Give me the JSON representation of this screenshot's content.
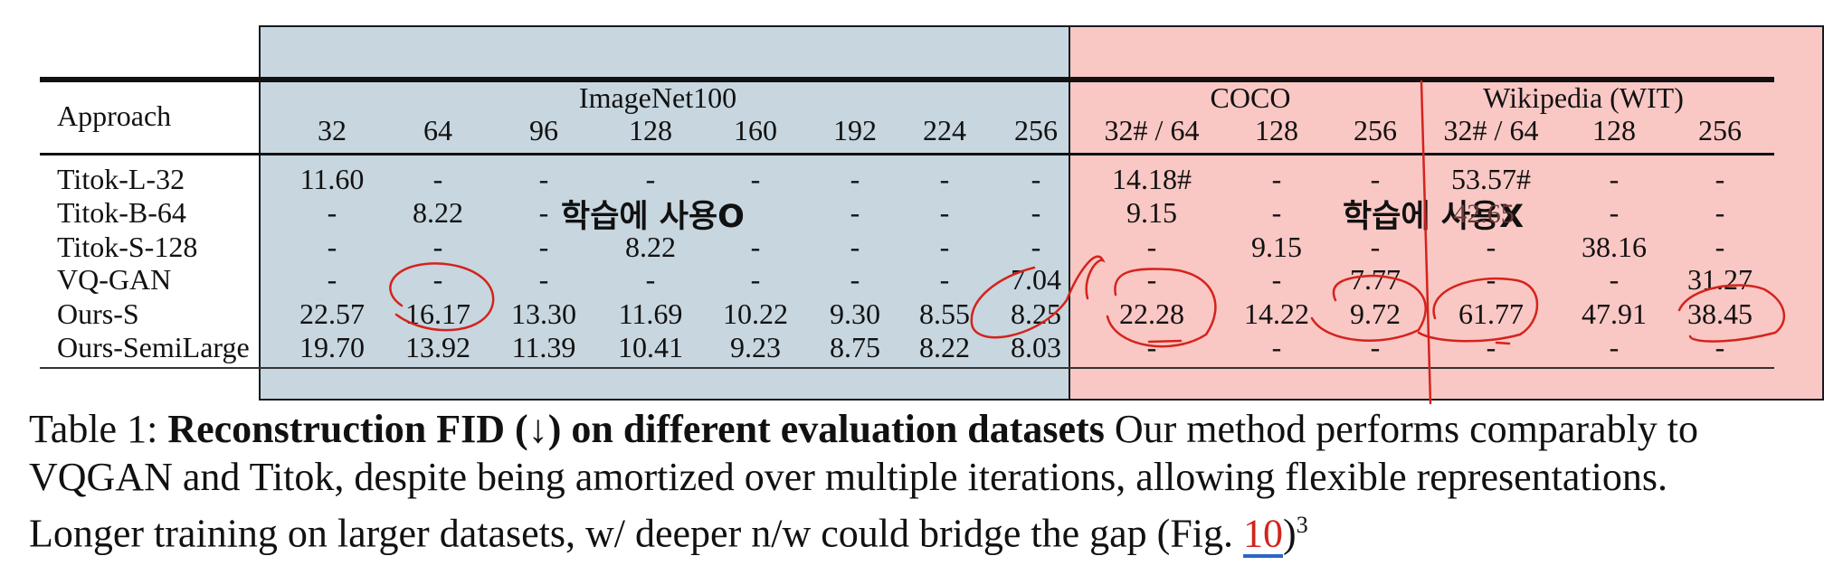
{
  "table": {
    "approach_header": "Approach",
    "groups": [
      {
        "label": "ImageNet100",
        "center": 0
      },
      {
        "label": "COCO",
        "center": 1
      },
      {
        "label": "Wikipedia (WIT)",
        "center": 2
      }
    ],
    "columns": [
      "32",
      "64",
      "96",
      "128",
      "160",
      "192",
      "224",
      "256",
      "32# / 64",
      "128",
      "256",
      "32# / 64",
      "128",
      "256"
    ],
    "rows": [
      {
        "name": "Titok-L-32",
        "values": [
          "11.60",
          "-",
          "-",
          "-",
          "-",
          "-",
          "-",
          "-",
          "14.18#",
          "-",
          "-",
          "53.57#",
          "-",
          "-"
        ]
      },
      {
        "name": "Titok-B-64",
        "values": [
          "-",
          "8.22",
          "-",
          "",
          "",
          "-",
          "-",
          "-",
          "9.15",
          "-",
          "",
          "",
          "-",
          "-"
        ]
      },
      {
        "name": "Titok-S-128",
        "values": [
          "-",
          "-",
          "-",
          "8.22",
          "-",
          "-",
          "-",
          "-",
          "-",
          "9.15",
          "-",
          "-",
          "38.16",
          "-"
        ]
      },
      {
        "name": "VQ-GAN",
        "values": [
          "-",
          "-",
          "-",
          "-",
          "-",
          "-",
          "-",
          "7.04",
          "-",
          "-",
          "7.77",
          "-",
          "-",
          "31.27"
        ]
      },
      {
        "name": "Ours-S",
        "values": [
          "22.57",
          "16.17",
          "13.30",
          "11.69",
          "10.22",
          "9.30",
          "8.55",
          "8.25",
          "22.28",
          "14.22",
          "9.72",
          "61.77",
          "47.91",
          "38.45"
        ]
      },
      {
        "name": "Ours-SemiLarge",
        "values": [
          "19.70",
          "13.92",
          "11.39",
          "10.41",
          "9.23",
          "8.75",
          "8.22",
          "8.03",
          "-",
          "-",
          "-",
          "-",
          "-",
          "-"
        ]
      }
    ]
  },
  "overlays": {
    "left_label": "학습에 사용O",
    "right_label": "학습에 사용X",
    "hidden_fragment": "42.65"
  },
  "caption": {
    "prefix": "Table 1: ",
    "bold": "Reconstruction FID (↓) on different evaluation datasets",
    "rest_1": " Our method performs comparably to VQGAN and Titok, despite being amortized over multiple iterations, allowing flexible representations. Longer training on larger datasets, w/ deeper n/w could bridge the gap (Fig. ",
    "fig_ref": "10",
    "rest_2": ")",
    "footnote": "3"
  },
  "colors": {
    "seen_region": "#c7d6df",
    "unseen_region": "#f9c7c4",
    "annotation_red": "#d4231c"
  }
}
